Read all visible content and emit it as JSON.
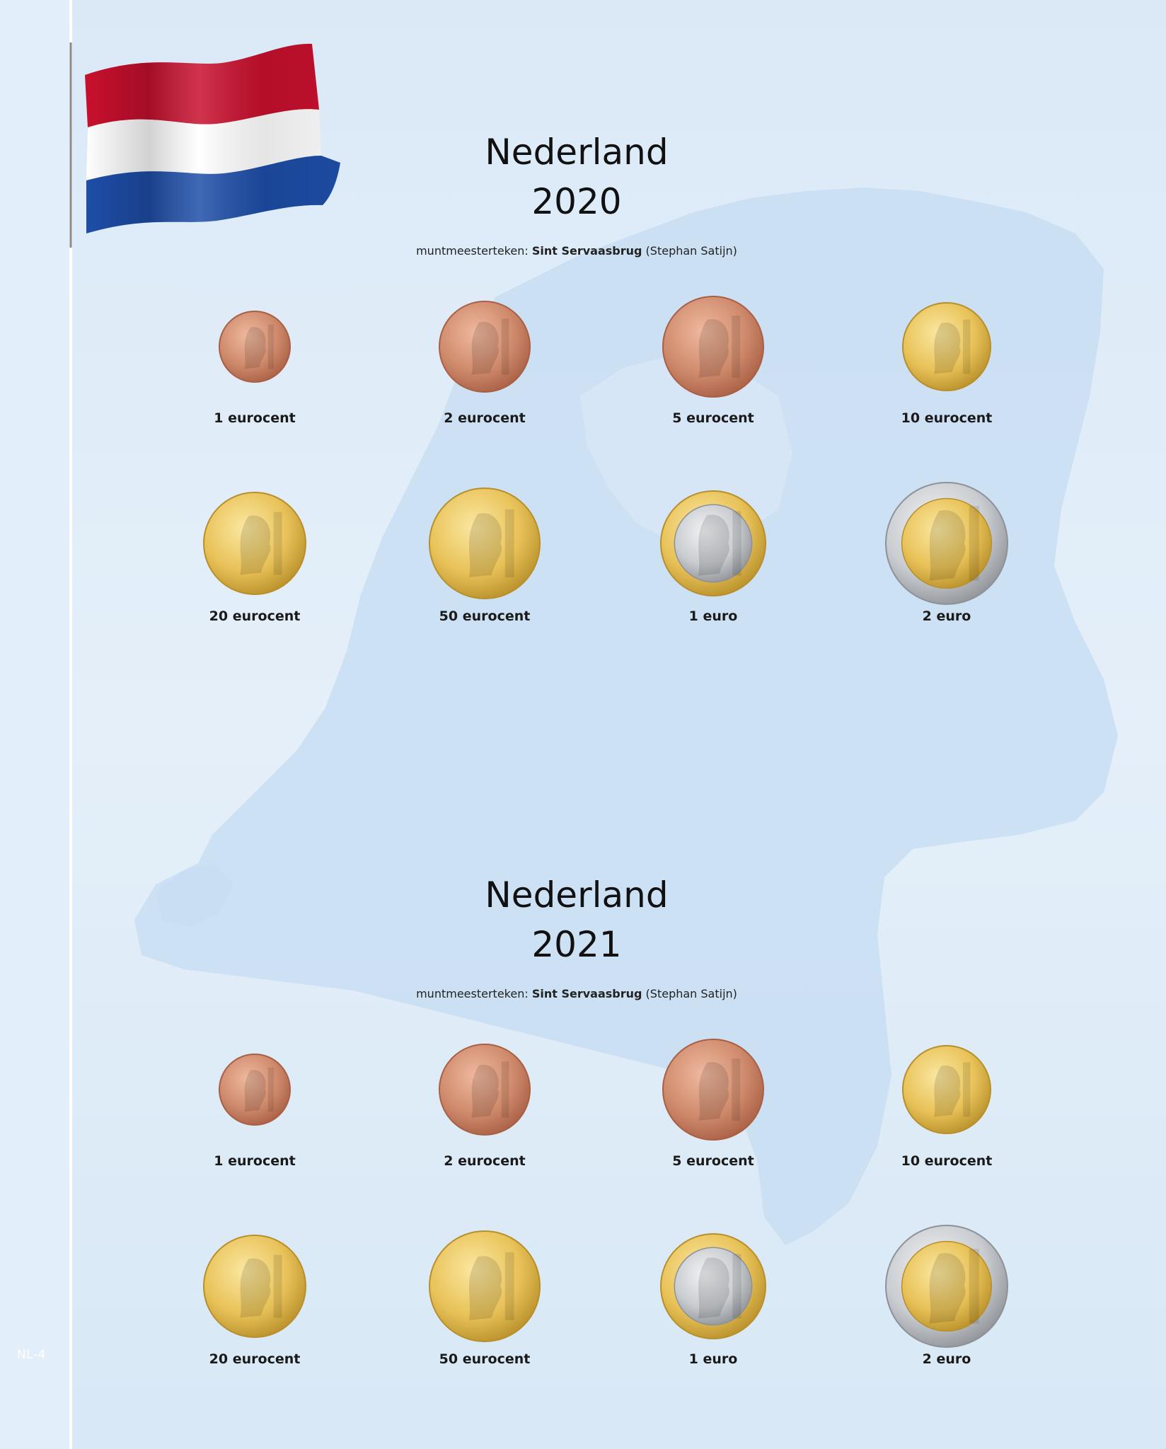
{
  "page_number": "NL-4",
  "flag": {
    "colors": [
      "#c8102e",
      "#ffffff",
      "#1e4ea8"
    ]
  },
  "colors": {
    "background": "#dbe9f7",
    "map": "#c8def3",
    "copper": "#cf8a6c",
    "gold": "#e8c258",
    "silver": "#c9ccd0"
  },
  "sections": [
    {
      "country": "Nederland",
      "year": "2020",
      "mint_prefix": "muntmeesterteken:",
      "mint_name": "Sint Servaasbrug",
      "mint_suffix": "(Stephan Satijn)",
      "coins": [
        {
          "label": "1 eurocent",
          "metal": "copper"
        },
        {
          "label": "2 eurocent",
          "metal": "copper"
        },
        {
          "label": "5 eurocent",
          "metal": "copper"
        },
        {
          "label": "10 eurocent",
          "metal": "gold"
        },
        {
          "label": "20 eurocent",
          "metal": "gold"
        },
        {
          "label": "50 eurocent",
          "metal": "gold"
        },
        {
          "label": "1 euro",
          "metal": "bimetal-silver-center"
        },
        {
          "label": "2 euro",
          "metal": "bimetal-gold-center"
        }
      ]
    },
    {
      "country": "Nederland",
      "year": "2021",
      "mint_prefix": "muntmeesterteken:",
      "mint_name": "Sint Servaasbrug",
      "mint_suffix": "(Stephan Satijn)",
      "coins": [
        {
          "label": "1 eurocent",
          "metal": "copper"
        },
        {
          "label": "2 eurocent",
          "metal": "copper"
        },
        {
          "label": "5 eurocent",
          "metal": "copper"
        },
        {
          "label": "10 eurocent",
          "metal": "gold"
        },
        {
          "label": "20 eurocent",
          "metal": "gold"
        },
        {
          "label": "50 eurocent",
          "metal": "gold"
        },
        {
          "label": "1 euro",
          "metal": "bimetal-silver-center"
        },
        {
          "label": "2 euro",
          "metal": "bimetal-gold-center"
        }
      ]
    }
  ]
}
